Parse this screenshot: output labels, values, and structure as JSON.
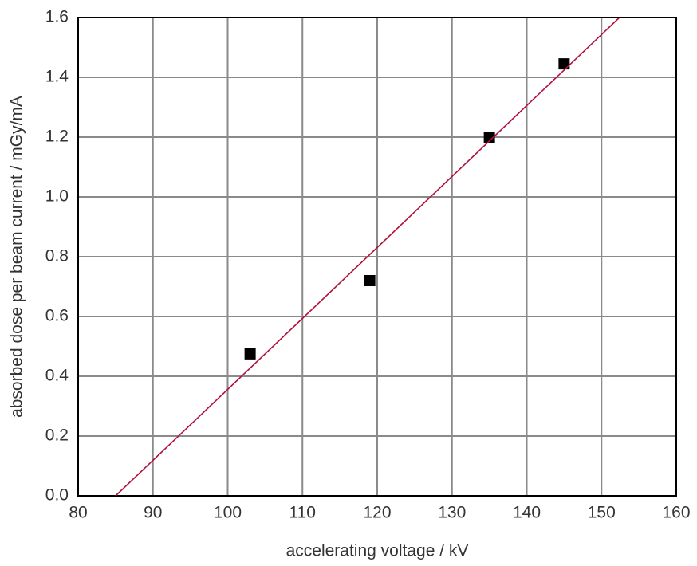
{
  "chart_data": {
    "type": "scatter",
    "x_label": "accelerating voltage / kV",
    "y_label": "absorbed dose per beam current / mGy/mA",
    "xlim": [
      80,
      160
    ],
    "xticks": [
      80,
      90,
      100,
      110,
      120,
      130,
      140,
      150,
      160
    ],
    "ylim": [
      0,
      1.6
    ],
    "yticks": [
      {
        "value": 0,
        "label": "0.0"
      },
      0.2,
      0.4,
      0.6,
      0.8,
      {
        "value": 1,
        "label": "1.0"
      },
      1.2,
      1.4,
      1.6
    ],
    "grid": true,
    "series": [
      {
        "x": [
          103,
          119,
          135,
          145
        ],
        "values": [
          0.475,
          0.72,
          1.2,
          1.445
        ],
        "color": "#000000",
        "marker": "square"
      },
      {
        "x": [
          85,
          152.4
        ],
        "values": [
          0,
          1.6
        ],
        "color": "#b0103a",
        "line": true
      }
    ]
  }
}
